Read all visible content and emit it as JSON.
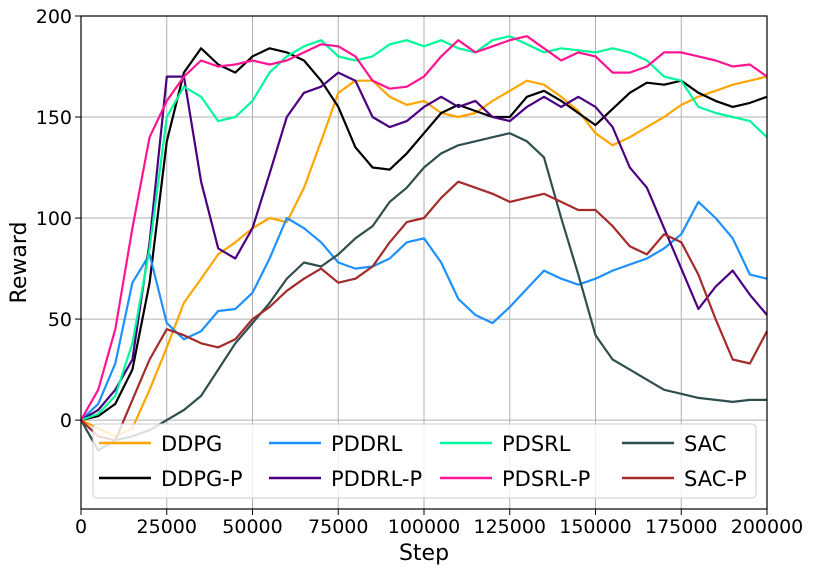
{
  "chart_data": {
    "type": "line",
    "title": "",
    "xlabel": "Step",
    "ylabel": "Reward",
    "xlim": [
      0,
      200000
    ],
    "ylim": [
      -44,
      200
    ],
    "grid": true,
    "legend_placement": "bottom",
    "x_ticks": [
      0,
      25000,
      50000,
      75000,
      100000,
      125000,
      150000,
      175000,
      200000
    ],
    "x_tick_labels": [
      "0",
      "25000",
      "50000",
      "75000",
      "100000",
      "125000",
      "150000",
      "175000",
      "200000"
    ],
    "y_ticks": [
      0,
      50,
      100,
      150,
      200
    ],
    "y_tick_labels": [
      "0",
      "50",
      "100",
      "150",
      "200"
    ],
    "series": [
      {
        "name": "DDPG",
        "color": "#FFA500",
        "x": [
          0,
          5000,
          10000,
          15000,
          20000,
          25000,
          30000,
          35000,
          40000,
          45000,
          50000,
          55000,
          60000,
          65000,
          70000,
          75000,
          80000,
          85000,
          90000,
          95000,
          100000,
          105000,
          110000,
          115000,
          120000,
          125000,
          130000,
          135000,
          140000,
          145000,
          150000,
          155000,
          160000,
          165000,
          170000,
          175000,
          180000,
          185000,
          190000,
          195000,
          200000
        ],
        "y": [
          0,
          -4,
          -8,
          -4,
          15,
          36,
          58,
          70,
          82,
          88,
          95,
          100,
          98,
          115,
          138,
          162,
          168,
          168,
          160,
          156,
          158,
          152,
          150,
          152,
          158,
          163,
          168,
          166,
          160,
          153,
          142,
          136,
          140,
          145,
          150,
          156,
          160,
          163,
          166,
          168,
          170
        ]
      },
      {
        "name": "DDPG-P",
        "color": "#000000",
        "x": [
          0,
          5000,
          10000,
          15000,
          20000,
          25000,
          30000,
          35000,
          40000,
          45000,
          50000,
          55000,
          60000,
          65000,
          70000,
          75000,
          80000,
          85000,
          90000,
          95000,
          100000,
          105000,
          110000,
          115000,
          120000,
          125000,
          130000,
          135000,
          140000,
          145000,
          150000,
          155000,
          160000,
          165000,
          170000,
          175000,
          180000,
          185000,
          190000,
          195000,
          200000
        ],
        "y": [
          0,
          2,
          8,
          25,
          68,
          138,
          172,
          184,
          176,
          172,
          180,
          184,
          182,
          178,
          168,
          155,
          135,
          125,
          124,
          132,
          142,
          152,
          156,
          153,
          150,
          150,
          160,
          163,
          158,
          152,
          146,
          154,
          162,
          167,
          166,
          168,
          162,
          158,
          155,
          157,
          160
        ]
      },
      {
        "name": "PDDRL",
        "color": "#1E90FF",
        "x": [
          0,
          5000,
          10000,
          15000,
          20000,
          25000,
          30000,
          35000,
          40000,
          45000,
          50000,
          55000,
          60000,
          65000,
          70000,
          75000,
          80000,
          85000,
          90000,
          95000,
          100000,
          105000,
          110000,
          115000,
          120000,
          125000,
          130000,
          135000,
          140000,
          145000,
          150000,
          155000,
          160000,
          165000,
          170000,
          175000,
          180000,
          185000,
          190000,
          195000,
          200000
        ],
        "y": [
          0,
          8,
          28,
          68,
          82,
          48,
          40,
          44,
          54,
          55,
          63,
          80,
          100,
          95,
          88,
          78,
          75,
          76,
          80,
          88,
          90,
          78,
          60,
          52,
          48,
          56,
          65,
          74,
          70,
          67,
          70,
          74,
          77,
          80,
          85,
          92,
          108,
          100,
          90,
          72,
          70
        ]
      },
      {
        "name": "PDDRL-P",
        "color": "#4B0082",
        "x": [
          0,
          5000,
          10000,
          15000,
          20000,
          25000,
          30000,
          35000,
          40000,
          45000,
          50000,
          55000,
          60000,
          65000,
          70000,
          75000,
          80000,
          85000,
          90000,
          95000,
          100000,
          105000,
          110000,
          115000,
          120000,
          125000,
          130000,
          135000,
          140000,
          145000,
          150000,
          155000,
          160000,
          165000,
          170000,
          175000,
          180000,
          185000,
          190000,
          195000,
          200000
        ],
        "y": [
          0,
          5,
          15,
          30,
          88,
          170,
          170,
          118,
          85,
          80,
          95,
          122,
          150,
          162,
          165,
          172,
          168,
          150,
          145,
          148,
          155,
          160,
          155,
          158,
          150,
          148,
          155,
          160,
          155,
          160,
          155,
          145,
          125,
          115,
          95,
          75,
          55,
          66,
          74,
          62,
          52
        ]
      },
      {
        "name": "PDSRL",
        "color": "#00FA9A",
        "x": [
          0,
          5000,
          10000,
          15000,
          20000,
          25000,
          30000,
          35000,
          40000,
          45000,
          50000,
          55000,
          60000,
          65000,
          70000,
          75000,
          80000,
          85000,
          90000,
          95000,
          100000,
          105000,
          110000,
          115000,
          120000,
          125000,
          130000,
          135000,
          140000,
          145000,
          150000,
          155000,
          160000,
          165000,
          170000,
          175000,
          180000,
          185000,
          190000,
          195000,
          200000
        ],
        "y": [
          0,
          3,
          12,
          38,
          85,
          150,
          165,
          160,
          148,
          150,
          158,
          172,
          180,
          185,
          188,
          180,
          178,
          180,
          186,
          188,
          185,
          188,
          184,
          182,
          188,
          190,
          186,
          182,
          184,
          183,
          182,
          184,
          182,
          178,
          170,
          168,
          155,
          152,
          150,
          148,
          140
        ]
      },
      {
        "name": "PDSRL-P",
        "color": "#FF1493",
        "x": [
          0,
          5000,
          10000,
          15000,
          20000,
          25000,
          30000,
          35000,
          40000,
          45000,
          50000,
          55000,
          60000,
          65000,
          70000,
          75000,
          80000,
          85000,
          90000,
          95000,
          100000,
          105000,
          110000,
          115000,
          120000,
          125000,
          130000,
          135000,
          140000,
          145000,
          150000,
          155000,
          160000,
          165000,
          170000,
          175000,
          180000,
          185000,
          190000,
          195000,
          200000
        ],
        "y": [
          0,
          15,
          45,
          95,
          140,
          158,
          170,
          178,
          175,
          176,
          178,
          176,
          178,
          182,
          186,
          185,
          180,
          168,
          164,
          165,
          170,
          180,
          188,
          182,
          185,
          188,
          190,
          184,
          178,
          182,
          180,
          172,
          172,
          175,
          182,
          182,
          180,
          178,
          175,
          176,
          170
        ]
      },
      {
        "name": "SAC",
        "color": "#2F4F4F",
        "x": [
          0,
          5000,
          10000,
          15000,
          20000,
          25000,
          30000,
          35000,
          40000,
          45000,
          50000,
          55000,
          60000,
          65000,
          70000,
          75000,
          80000,
          85000,
          90000,
          95000,
          100000,
          105000,
          110000,
          115000,
          120000,
          125000,
          130000,
          135000,
          140000,
          145000,
          150000,
          155000,
          160000,
          165000,
          170000,
          175000,
          180000,
          185000,
          190000,
          195000,
          200000
        ],
        "y": [
          0,
          -15,
          -10,
          -8,
          -5,
          0,
          5,
          12,
          25,
          38,
          48,
          58,
          70,
          78,
          76,
          82,
          90,
          96,
          108,
          115,
          125,
          132,
          136,
          138,
          140,
          142,
          138,
          130,
          100,
          72,
          42,
          30,
          25,
          20,
          15,
          13,
          11,
          10,
          9,
          10,
          10
        ]
      },
      {
        "name": "SAC-P",
        "color": "#A52A2A",
        "x": [
          0,
          5000,
          10000,
          15000,
          20000,
          25000,
          30000,
          35000,
          40000,
          45000,
          50000,
          55000,
          60000,
          65000,
          70000,
          75000,
          80000,
          85000,
          90000,
          95000,
          100000,
          105000,
          110000,
          115000,
          120000,
          125000,
          130000,
          135000,
          140000,
          145000,
          150000,
          155000,
          160000,
          165000,
          170000,
          175000,
          180000,
          185000,
          190000,
          195000,
          200000
        ],
        "y": [
          0,
          -8,
          -10,
          10,
          30,
          45,
          42,
          38,
          36,
          40,
          50,
          56,
          64,
          70,
          75,
          68,
          70,
          76,
          88,
          98,
          100,
          110,
          118,
          115,
          112,
          108,
          110,
          112,
          108,
          104,
          104,
          96,
          86,
          82,
          92,
          88,
          72,
          50,
          30,
          28,
          44
        ]
      }
    ]
  }
}
